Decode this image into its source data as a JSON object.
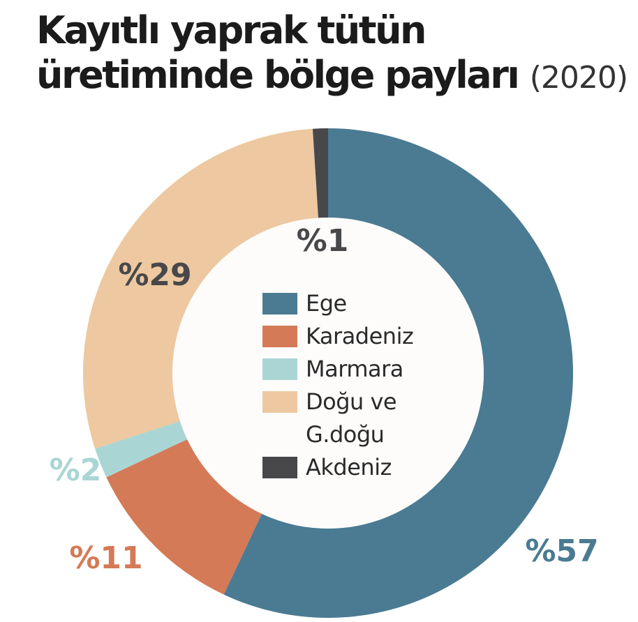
{
  "chart_data": {
    "type": "donut",
    "title": [
      "Kayıtlı yaprak tütün",
      "üretiminde bölge payları"
    ],
    "subtitle": "(2020)",
    "categories": [
      "Ege",
      "Karadeniz",
      "Marmara",
      "Doğu ve G.doğu",
      "Akdeniz"
    ],
    "values": [
      57,
      11,
      2,
      29,
      1
    ],
    "value_labels": [
      "%57",
      "%11",
      "%2",
      "%29",
      "%1"
    ],
    "colors": [
      "#4a7b92",
      "#d47a56",
      "#a9d6d4",
      "#edc8a0",
      "#48484a"
    ],
    "label_colors": [
      "#4a7b92",
      "#d47a56",
      "#a9d6d4",
      "#48484a",
      "#48484a"
    ]
  }
}
